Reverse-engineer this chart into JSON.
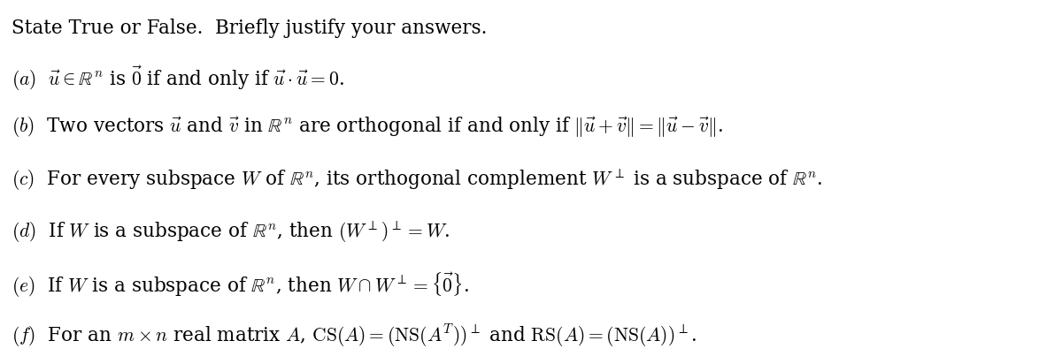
{
  "title": "State True or False.  Briefly justify your answers.",
  "lines": [
    "(a)\\;\\;\\vec{u} \\in \\mathbb{R}^n \\text{ is } \\vec{0} \\text{ if and only if } \\vec{u} \\cdot \\vec{u} = 0.",
    "(b)\\;\\;\\text{Two vectors } \\vec{u} \\text{ and } \\vec{v} \\text{ in } \\mathbb{R}^n \\text{ are orthogonal if and only if } \\|\\vec{u} + \\vec{v}\\| = \\|\\vec{u} - \\vec{v}\\|.",
    "(c)\\;\\;\\text{For every subspace } W \\text{ of } \\mathbb{R}^n\\text{, its orthogonal complement } W^\\perp \\text{ is a subspace of } \\mathbb{R}^n\\text{.}",
    "(d)\\;\\;\\text{If } W \\text{ is a subspace of } \\mathbb{R}^n\\text{, then } (W^\\perp)^\\perp = W\\text{.}",
    "(e)\\;\\;\\text{If } W \\text{ is a subspace of } \\mathbb{R}^n\\text{, then } W \\cap W^\\perp = \\{\\vec{0}\\}\\text{.}",
    "(f)\\;\\;\\text{For an } m \\times n \\text{ real matrix } A\\text{, } \\mathrm{CS}(A) = (\\mathrm{NS}(A^T))^\\perp \\text{ and } \\mathrm{RS}(A) = (\\mathrm{NS}(A))^\\perp\\text{.}"
  ],
  "bg_color": "#ffffff",
  "text_color": "#000000",
  "fontsize": 15.5,
  "title_fontsize": 15.5,
  "fig_width": 12.0,
  "fig_height": 4.03,
  "dpi": 100
}
